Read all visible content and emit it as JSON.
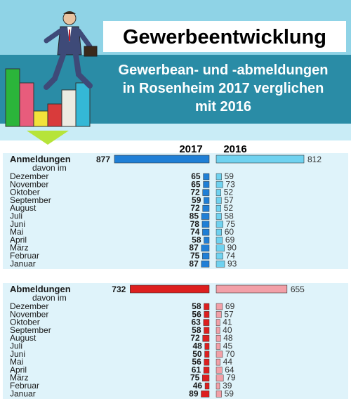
{
  "header": {
    "title": "Gewerbeentwicklung",
    "subtitle_lines": [
      "Gewerbean- und -abmeldungen",
      "in Rosenheim 2017 verglichen",
      "mit 2016"
    ]
  },
  "colors": {
    "header_top": "#8fd3e6",
    "header_band": "#2a8ca6",
    "header_lower": "#c9ecf6",
    "panel_bg": "#dff3fa",
    "blue_2017": "#1f7fd6",
    "blue_2016": "#6fd2f0",
    "red_2017": "#dd1f1f",
    "red_2016": "#f2a0a8",
    "text": "#1a1a1a"
  },
  "chart_data": [
    {
      "type": "bar",
      "orientation": "horizontal-butterfly",
      "title": "Anmeldungen",
      "years": [
        "2017",
        "2016"
      ],
      "total_label": "Anmeldungen",
      "total": {
        "2017": 877,
        "2016": 812
      },
      "sub_label": "davon im",
      "categories": [
        "Dezember",
        "November",
        "Oktober",
        "September",
        "August",
        "Juli",
        "Juni",
        "Mai",
        "April",
        "März",
        "Februar",
        "Januar"
      ],
      "series": [
        {
          "name": "2017",
          "values": [
            65,
            65,
            72,
            59,
            72,
            85,
            78,
            74,
            58,
            87,
            75,
            87
          ]
        },
        {
          "name": "2016",
          "values": [
            59,
            73,
            52,
            57,
            52,
            58,
            75,
            60,
            69,
            90,
            74,
            93
          ]
        }
      ]
    },
    {
      "type": "bar",
      "orientation": "horizontal-butterfly",
      "title": "Abmeldungen",
      "years": [
        "2017",
        "2016"
      ],
      "total_label": "Abmeldungen",
      "total": {
        "2017": 732,
        "2016": 655
      },
      "sub_label": "davon im",
      "categories": [
        "Dezember",
        "November",
        "Oktober",
        "September",
        "August",
        "Juli",
        "Juni",
        "Mai",
        "April",
        "März",
        "Februar",
        "Januar"
      ],
      "series": [
        {
          "name": "2017",
          "values": [
            58,
            56,
            63,
            58,
            72,
            48,
            50,
            56,
            61,
            75,
            46,
            89
          ]
        },
        {
          "name": "2016",
          "values": [
            69,
            57,
            41,
            40,
            48,
            45,
            70,
            44,
            64,
            79,
            39,
            59
          ]
        }
      ]
    }
  ]
}
